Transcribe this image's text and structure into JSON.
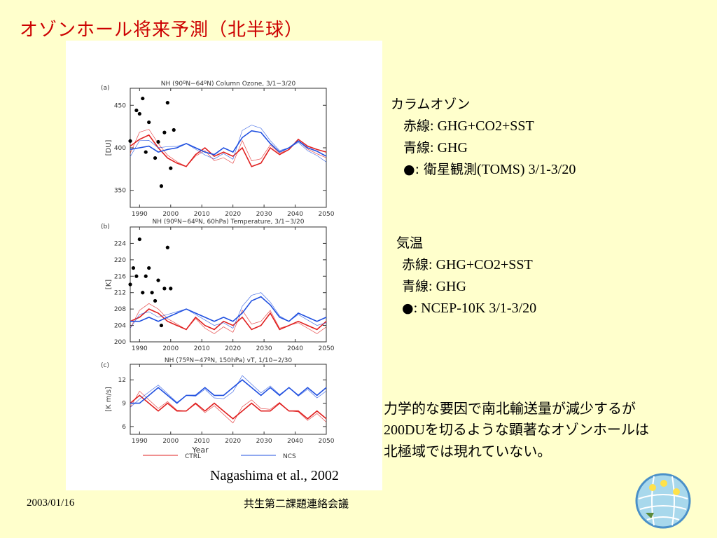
{
  "slide": {
    "title": "オゾンホール将来予測（北半球）",
    "citation": "Nagashima et al., 2002",
    "footer_date": "2003/01/16",
    "footer_meeting": "共生第二課題連絡会議"
  },
  "notes": {
    "ozone": {
      "heading": "カラムオゾン",
      "red_key": "赤線",
      "red_val": ": GHG+CO2+SST",
      "blue_key": "青線",
      "blue_val": ": GHG",
      "dot_key": "●",
      "dot_val_jp": ": 衛星観測",
      "dot_val_en": "(TOMS) 3/1-3/20"
    },
    "temp": {
      "heading": "気温",
      "red_key": "赤線",
      "red_val": ": GHG+CO2+SST",
      "blue_key": "青線",
      "blue_val": ": GHG",
      "dot_key": "●",
      "dot_val": ": NCEP-10K 3/1-3/20"
    },
    "conclusion": {
      "line1": "力学的な要因で南北輸送量が減少するが",
      "line2_num": "200DU",
      "line2_rest": "を切るような顕著なオゾンホールは",
      "line3": "北極域では現れていない。"
    }
  },
  "colors": {
    "ctrl": "#e02020",
    "ncs": "#2050e0",
    "title": "#cc0000"
  },
  "chart_data": [
    {
      "type": "line",
      "panel_label": "(a)",
      "title": "NH (90ºN−64ºN) Column Ozone, 3/1−3/20",
      "ylabel": "[DU]",
      "xlim": [
        1987,
        2050
      ],
      "ylim": [
        330,
        470
      ],
      "xticks": [
        1990,
        2000,
        2010,
        2020,
        2030,
        2040,
        2050
      ],
      "yticks": [
        350,
        400,
        450
      ],
      "series": [
        {
          "name": "CTRL",
          "color": "#e02020",
          "x": [
            1987,
            1990,
            1993,
            1996,
            1999,
            2002,
            2005,
            2008,
            2011,
            2014,
            2017,
            2020,
            2023,
            2026,
            2029,
            2032,
            2035,
            2038,
            2041,
            2044,
            2047,
            2050
          ],
          "values": [
            402,
            410,
            415,
            400,
            388,
            382,
            378,
            392,
            400,
            390,
            395,
            390,
            400,
            378,
            382,
            400,
            392,
            398,
            410,
            402,
            398,
            395
          ]
        },
        {
          "name": "NCS",
          "color": "#2050e0",
          "x": [
            1987,
            1990,
            1993,
            1996,
            1999,
            2002,
            2005,
            2008,
            2011,
            2014,
            2017,
            2020,
            2023,
            2026,
            2029,
            2032,
            2035,
            2038,
            2041,
            2044,
            2047,
            2050
          ],
          "values": [
            398,
            400,
            402,
            395,
            398,
            400,
            405,
            400,
            395,
            392,
            400,
            395,
            412,
            420,
            418,
            405,
            395,
            400,
            408,
            400,
            396,
            390
          ]
        },
        {
          "name": "TOMS",
          "type": "scatter",
          "x": [
            1987,
            1989,
            1990,
            1991,
            1992,
            1993,
            1995,
            1996,
            1997,
            1998,
            1999,
            2000,
            2001
          ],
          "values": [
            408,
            444,
            440,
            458,
            395,
            430,
            388,
            407,
            355,
            418,
            453,
            376,
            421
          ]
        }
      ]
    },
    {
      "type": "line",
      "panel_label": "(b)",
      "title": "NH (90ºN−64ºN, 60hPa) Temperature, 3/1−3/20",
      "ylabel": "[K]",
      "xlim": [
        1987,
        2050
      ],
      "ylim": [
        200,
        228
      ],
      "xticks": [
        1990,
        2000,
        2010,
        2020,
        2030,
        2040,
        2050
      ],
      "yticks": [
        200,
        204,
        208,
        212,
        216,
        220,
        224
      ],
      "series": [
        {
          "name": "CTRL",
          "color": "#e02020",
          "x": [
            1987,
            1990,
            1993,
            1996,
            1999,
            2002,
            2005,
            2008,
            2011,
            2014,
            2017,
            2020,
            2023,
            2026,
            2029,
            2032,
            2035,
            2038,
            2041,
            2044,
            2047,
            2050
          ],
          "values": [
            205,
            206,
            208,
            207,
            205,
            204,
            203,
            206,
            204,
            203,
            205,
            204,
            206,
            203,
            204,
            207,
            203,
            204,
            205,
            204,
            203,
            205
          ]
        },
        {
          "name": "NCS",
          "color": "#2050e0",
          "x": [
            1987,
            1990,
            1993,
            1996,
            1999,
            2002,
            2005,
            2008,
            2011,
            2014,
            2017,
            2020,
            2023,
            2026,
            2029,
            2032,
            2035,
            2038,
            2041,
            2044,
            2047,
            2050
          ],
          "values": [
            205,
            205,
            206,
            205,
            206,
            207,
            208,
            207,
            206,
            205,
            206,
            205,
            207,
            210,
            211,
            209,
            206,
            205,
            207,
            206,
            205,
            206
          ]
        },
        {
          "name": "NCEP-10K",
          "type": "scatter",
          "x": [
            1987,
            1988,
            1989,
            1990,
            1991,
            1992,
            1993,
            1994,
            1995,
            1996,
            1997,
            1998,
            1999,
            2000
          ],
          "values": [
            214,
            218,
            216,
            225,
            212,
            216,
            218,
            212,
            210,
            215,
            204,
            213,
            223,
            213
          ]
        }
      ]
    },
    {
      "type": "line",
      "panel_label": "(c)",
      "title": "NH (75ºN−47ºN, 150hPa) vT, 1/10−2/30",
      "ylabel": "[K m/s]",
      "xlabel": "Year",
      "xlim": [
        1987,
        2050
      ],
      "ylim": [
        5,
        14
      ],
      "xticks": [
        1990,
        2000,
        2010,
        2020,
        2030,
        2040,
        2050
      ],
      "yticks": [
        6,
        9,
        12
      ],
      "series": [
        {
          "name": "CTRL",
          "color": "#e02020",
          "x": [
            1987,
            1990,
            1993,
            1996,
            1999,
            2002,
            2005,
            2008,
            2011,
            2014,
            2017,
            2020,
            2023,
            2026,
            2029,
            2032,
            2035,
            2038,
            2041,
            2044,
            2047,
            2050
          ],
          "values": [
            9,
            10,
            9,
            8,
            9,
            8,
            8,
            9,
            8,
            9,
            8,
            7,
            8,
            9,
            8,
            8,
            9,
            8,
            8,
            7,
            8,
            7
          ]
        },
        {
          "name": "NCS",
          "color": "#2050e0",
          "x": [
            1987,
            1990,
            1993,
            1996,
            1999,
            2002,
            2005,
            2008,
            2011,
            2014,
            2017,
            2020,
            2023,
            2026,
            2029,
            2032,
            2035,
            2038,
            2041,
            2044,
            2047,
            2050
          ],
          "values": [
            9,
            9,
            10,
            11,
            10,
            9,
            10,
            10,
            11,
            10,
            10,
            11,
            12,
            11,
            10,
            11,
            10,
            11,
            10,
            11,
            10,
            11
          ]
        }
      ]
    }
  ],
  "legend": {
    "ctrl": "CTRL",
    "ncs": "NCS"
  }
}
